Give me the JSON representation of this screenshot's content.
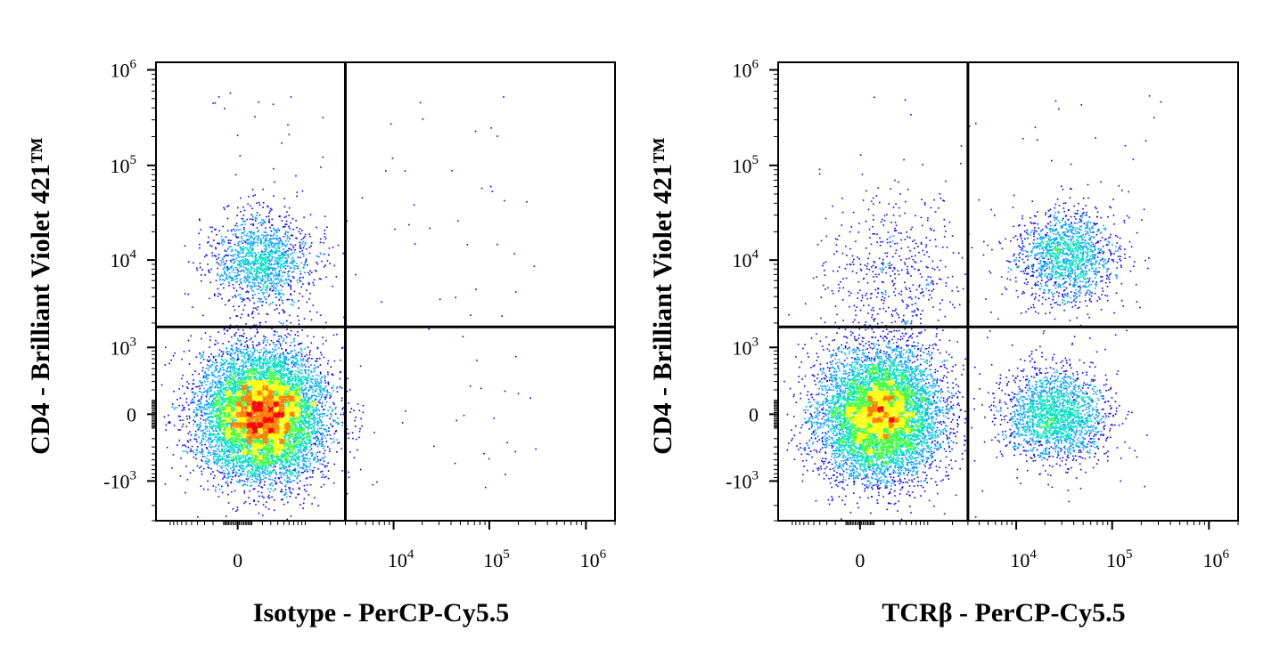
{
  "chart_data": [
    {
      "type": "scatter",
      "subtype": "flow-cytometry-density-dot-plot",
      "xlabel": "Isotype - PerCP-Cy5.5",
      "ylabel": "CD4 - Brilliant Violet 421™",
      "x_scale": "biexponential",
      "y_scale": "biexponential",
      "xlim": [
        -1500,
        2000000
      ],
      "ylim": [
        -3000,
        1200000
      ],
      "x_ticks": [
        {
          "value": 0,
          "base": "0",
          "exp": ""
        },
        {
          "value": 10000,
          "base": "10",
          "exp": "4"
        },
        {
          "value": 100000,
          "base": "10",
          "exp": "5"
        },
        {
          "value": 1000000,
          "base": "10",
          "exp": "6"
        }
      ],
      "y_ticks": [
        {
          "value": 1000000,
          "base": "10",
          "exp": "6"
        },
        {
          "value": 100000,
          "base": "10",
          "exp": "5"
        },
        {
          "value": 10000,
          "base": "10",
          "exp": "4"
        },
        {
          "value": 1000,
          "base": "10",
          "exp": "3"
        },
        {
          "value": 0,
          "base": "0",
          "exp": ""
        },
        {
          "value": -1000,
          "base": "-10",
          "exp": "3"
        }
      ],
      "quadrant_gate": {
        "x": 3000,
        "y": 1800
      },
      "populations": [
        {
          "name": "",
          "x_center": 200,
          "y_center": 0,
          "events": 9000,
          "peak_density": "high"
        },
        {
          "name": "",
          "x_center": 200,
          "y_center": 10000,
          "events": 1400,
          "peak_density": "medium"
        }
      ],
      "grid": false,
      "legend": "none",
      "density_colors": [
        "#0000ff",
        "#00a0ff",
        "#00e0c0",
        "#40ff40",
        "#ffff00",
        "#ff8000",
        "#ff0000"
      ]
    },
    {
      "type": "scatter",
      "subtype": "flow-cytometry-density-dot-plot",
      "xlabel": "TCRβ - PerCP-Cy5.5",
      "ylabel": "CD4 - Brilliant Violet 421™",
      "x_scale": "biexponential",
      "y_scale": "biexponential",
      "xlim": [
        -1500,
        2000000
      ],
      "ylim": [
        -3000,
        1200000
      ],
      "x_ticks": [
        {
          "value": 0,
          "base": "0",
          "exp": ""
        },
        {
          "value": 10000,
          "base": "10",
          "exp": "4"
        },
        {
          "value": 100000,
          "base": "10",
          "exp": "5"
        },
        {
          "value": 1000000,
          "base": "10",
          "exp": "6"
        }
      ],
      "y_ticks": [
        {
          "value": 1000000,
          "base": "10",
          "exp": "6"
        },
        {
          "value": 100000,
          "base": "10",
          "exp": "5"
        },
        {
          "value": 10000,
          "base": "10",
          "exp": "4"
        },
        {
          "value": 1000,
          "base": "10",
          "exp": "3"
        },
        {
          "value": 0,
          "base": "0",
          "exp": ""
        },
        {
          "value": -1000,
          "base": "-10",
          "exp": "3"
        }
      ],
      "quadrant_gate": {
        "x": 3000,
        "y": 1800
      },
      "populations": [
        {
          "name": "",
          "x_center": 150,
          "y_center": 0,
          "events": 7500,
          "peak_density": "high"
        },
        {
          "name": "",
          "x_center": 25000,
          "y_center": 0,
          "events": 2000,
          "peak_density": "medium"
        },
        {
          "name": "",
          "x_center": 33000,
          "y_center": 11000,
          "events": 1500,
          "peak_density": "high"
        },
        {
          "name": "",
          "x_center": 300,
          "y_center": 7000,
          "events": 500,
          "peak_density": "low"
        }
      ],
      "grid": false,
      "legend": "none",
      "density_colors": [
        "#0000ff",
        "#00a0ff",
        "#00e0c0",
        "#40ff40",
        "#ffff00",
        "#ff8000",
        "#ff0000"
      ]
    }
  ]
}
